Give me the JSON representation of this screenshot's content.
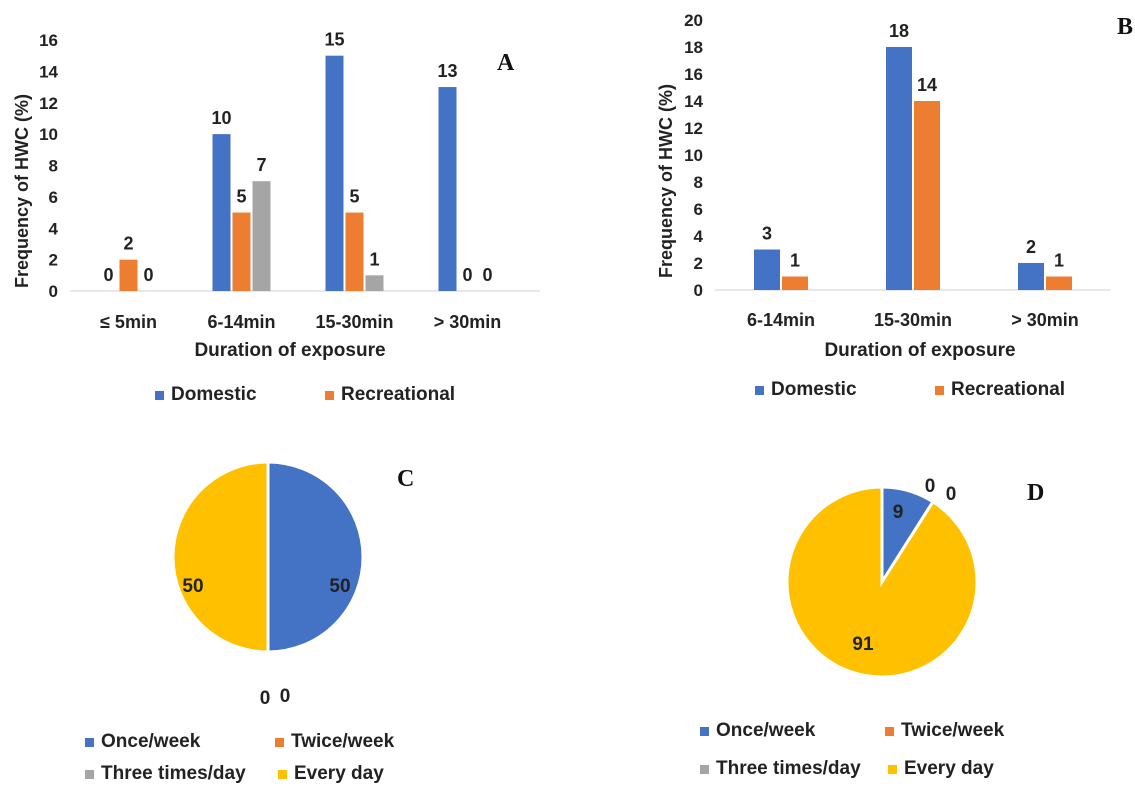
{
  "colors": {
    "domestic": "#4472C4",
    "recreational": "#ED7D31",
    "gray": "#A5A5A5",
    "every_day": "#FFC000"
  },
  "chart_data": [
    {
      "panel": "A",
      "type": "bar",
      "ylabel": "Frequency of HWC (%)",
      "xlabel": "Duration of exposure",
      "ylim": [
        0,
        16
      ],
      "yticks": [
        0,
        2,
        4,
        6,
        8,
        10,
        12,
        14,
        16
      ],
      "categories": [
        "≤ 5min",
        "6-14min",
        "15-30min",
        "> 30min"
      ],
      "series": [
        {
          "name": "Domestic",
          "color": "#4472C4",
          "values": [
            0,
            10,
            15,
            13
          ]
        },
        {
          "name": "Recreational",
          "color": "#ED7D31",
          "values": [
            2,
            5,
            5,
            0
          ]
        },
        {
          "color": "#A5A5A5",
          "values": [
            0,
            7,
            1,
            0
          ]
        }
      ],
      "legend": [
        "Domestic",
        "Recreational"
      ],
      "legend_position": "bottom"
    },
    {
      "panel": "B",
      "type": "bar",
      "ylabel": "Frequency of HWC (%)",
      "xlabel": "Duration of exposure",
      "ylim": [
        0,
        20
      ],
      "yticks": [
        0,
        2,
        4,
        6,
        8,
        10,
        12,
        14,
        16,
        18,
        20
      ],
      "categories": [
        "6-14min",
        "15-30min",
        "> 30min"
      ],
      "series": [
        {
          "name": "Domestic",
          "color": "#4472C4",
          "values": [
            3,
            18,
            2
          ]
        },
        {
          "name": "Recreational",
          "color": "#ED7D31",
          "values": [
            1,
            14,
            1
          ]
        }
      ],
      "legend": [
        "Domestic",
        "Recreational"
      ],
      "legend_position": "bottom"
    },
    {
      "panel": "C",
      "type": "pie",
      "labels": [
        "Once/week",
        "Twice/week",
        "Three times/day",
        "Every day"
      ],
      "values": [
        50,
        0,
        0,
        50
      ],
      "colors": [
        "#4472C4",
        "#ED7D31",
        "#A5A5A5",
        "#FFC000"
      ],
      "legend_position": "bottom"
    },
    {
      "panel": "D",
      "type": "pie",
      "labels": [
        "Once/week",
        "Twice/week",
        "Three times/day",
        "Every day"
      ],
      "values": [
        9,
        0,
        0,
        91
      ],
      "colors": [
        "#4472C4",
        "#ED7D31",
        "#A5A5A5",
        "#FFC000"
      ],
      "legend_position": "bottom"
    }
  ]
}
